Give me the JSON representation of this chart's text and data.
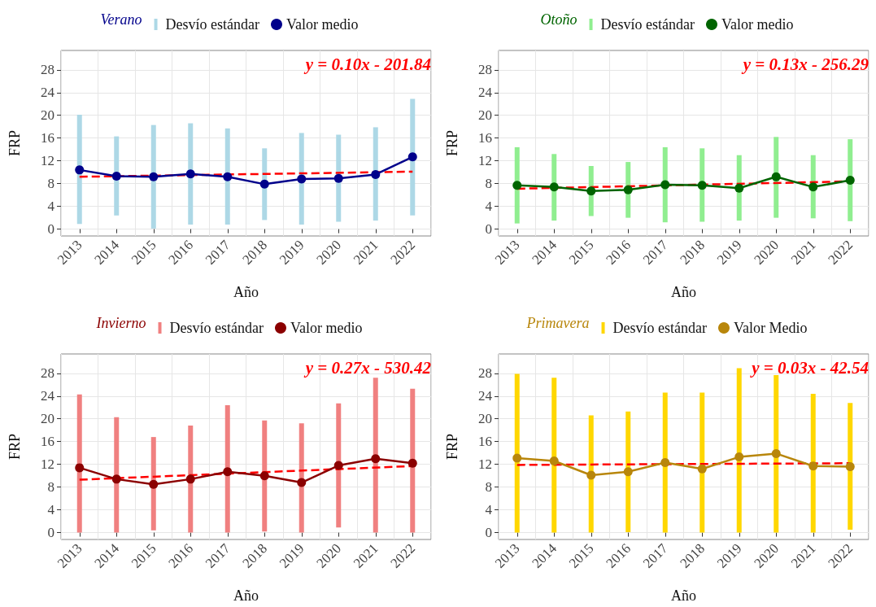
{
  "chart_data": [
    {
      "type": "line",
      "legend_title": "Verano",
      "xlabel": "Año",
      "ylabel": "FRP",
      "categories": [
        "2013",
        "2014",
        "2015",
        "2016",
        "2017",
        "2018",
        "2019",
        "2020",
        "2021",
        "2022"
      ],
      "ylim": [
        -1.2,
        31.4
      ],
      "yticks": [
        0,
        4,
        8,
        12,
        16,
        20,
        24,
        28
      ],
      "grid": true,
      "legend": "top",
      "marker": "circle",
      "annotations": [
        "y = 0.10x - 201.84"
      ],
      "series": [
        {
          "type": "bar",
          "name": "Desvío estándar",
          "color": "#add8e6",
          "base": [
            0.9,
            2.4,
            0.1,
            0.8,
            0.8,
            1.6,
            0.8,
            1.3,
            1.5,
            2.4
          ],
          "values": [
            19.2,
            13.9,
            18.2,
            17.8,
            16.9,
            12.6,
            16.1,
            15.3,
            16.4,
            20.5
          ]
        },
        {
          "name": "Valor medio",
          "color": "#00008b",
          "values": [
            10.4,
            9.3,
            9.2,
            9.7,
            9.2,
            7.9,
            8.8,
            8.9,
            9.6,
            12.7
          ]
        },
        {
          "color": "#ff0000",
          "line_style": "dashed",
          "marker": "none",
          "values": [
            9.2,
            null,
            null,
            null,
            null,
            null,
            null,
            null,
            null,
            10.1
          ]
        }
      ]
    },
    {
      "type": "line",
      "legend_title": "Otoño",
      "xlabel": "Año",
      "ylabel": "FRP",
      "categories": [
        "2013",
        "2014",
        "2015",
        "2016",
        "2017",
        "2018",
        "2019",
        "2020",
        "2021",
        "2022"
      ],
      "ylim": [
        -1.2,
        31.4
      ],
      "yticks": [
        0,
        4,
        8,
        12,
        16,
        20,
        24,
        28
      ],
      "grid": true,
      "legend": "top",
      "marker": "circle",
      "annotations": [
        "y = 0.13x - 256.29"
      ],
      "series": [
        {
          "type": "bar",
          "name": "Desvío estándar",
          "color": "#90ee90",
          "base": [
            1.0,
            1.5,
            2.3,
            2.0,
            1.2,
            1.3,
            1.5,
            2.0,
            1.9,
            1.4
          ],
          "values": [
            13.4,
            11.7,
            8.8,
            9.8,
            13.2,
            12.9,
            11.5,
            14.2,
            11.1,
            14.4
          ]
        },
        {
          "name": "Valor medio",
          "color": "#006400",
          "values": [
            7.7,
            7.4,
            6.7,
            6.9,
            7.8,
            7.7,
            7.2,
            9.2,
            7.4,
            8.6
          ]
        },
        {
          "color": "#ff0000",
          "line_style": "dashed",
          "marker": "none",
          "values": [
            7.1,
            null,
            null,
            null,
            null,
            null,
            null,
            null,
            null,
            8.4
          ]
        }
      ]
    },
    {
      "type": "line",
      "legend_title": "Invierno",
      "xlabel": "Año",
      "ylabel": "FRP",
      "categories": [
        "2013",
        "2014",
        "2015",
        "2016",
        "2017",
        "2018",
        "2019",
        "2020",
        "2021",
        "2022"
      ],
      "ylim": [
        -1.2,
        31.4
      ],
      "yticks": [
        0,
        4,
        8,
        12,
        16,
        20,
        24,
        28
      ],
      "grid": true,
      "legend": "top",
      "marker": "circle",
      "annotations": [
        "y = 0.27x - 530.42"
      ],
      "series": [
        {
          "type": "bar",
          "name": "Desvío estándar",
          "color": "#f08080",
          "base": [
            0,
            0,
            0.4,
            0,
            0,
            0.2,
            0,
            0.9,
            0,
            0
          ],
          "values": [
            24.3,
            20.3,
            16.4,
            18.8,
            22.4,
            19.5,
            19.2,
            21.8,
            27.2,
            25.3
          ]
        },
        {
          "name": "Valor medio",
          "color": "#8b0000",
          "values": [
            11.4,
            9.4,
            8.5,
            9.4,
            10.7,
            10.0,
            8.8,
            11.8,
            13.0,
            12.2
          ]
        },
        {
          "color": "#ff0000",
          "line_style": "dashed",
          "marker": "none",
          "values": [
            9.3,
            null,
            null,
            null,
            null,
            null,
            null,
            null,
            null,
            11.7
          ]
        }
      ]
    },
    {
      "type": "line",
      "legend_title": "Primavera",
      "xlabel": "Año",
      "ylabel": "FRP",
      "categories": [
        "2013",
        "2014",
        "2015",
        "2016",
        "2017",
        "2018",
        "2019",
        "2020",
        "2021",
        "2022"
      ],
      "ylim": [
        -1.2,
        31.4
      ],
      "yticks": [
        0,
        4,
        8,
        12,
        16,
        20,
        24,
        28
      ],
      "grid": true,
      "legend": "top",
      "marker": "circle",
      "annotations": [
        "y = 0.03x - 42.54"
      ],
      "series": [
        {
          "type": "bar",
          "name": "Desvío estándar",
          "color": "#ffd700",
          "base": [
            0,
            0,
            0,
            0.1,
            0,
            0,
            0,
            0,
            0,
            0.5
          ],
          "values": [
            27.9,
            27.2,
            20.6,
            21.2,
            24.6,
            24.6,
            28.9,
            27.7,
            24.4,
            22.3
          ]
        },
        {
          "name": "Valor Medio",
          "color": "#b8860b",
          "values": [
            13.1,
            12.6,
            10.1,
            10.7,
            12.3,
            11.2,
            13.3,
            13.9,
            11.7,
            11.6
          ]
        },
        {
          "color": "#ff0000",
          "line_style": "dashed",
          "marker": "none",
          "values": [
            11.9,
            null,
            null,
            null,
            null,
            null,
            null,
            null,
            null,
            12.2
          ]
        }
      ]
    }
  ]
}
